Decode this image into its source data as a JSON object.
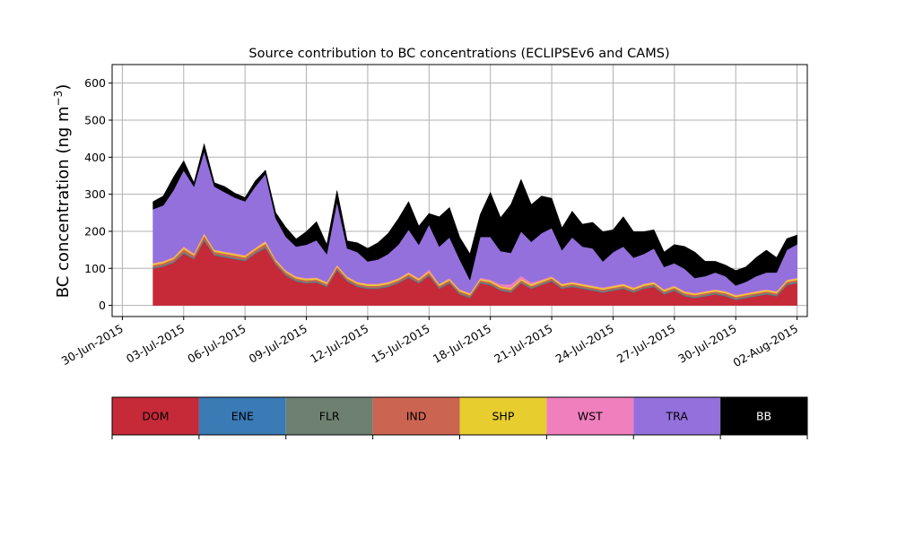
{
  "chart_data": {
    "type": "area",
    "stacked": true,
    "title": "Source contribution to BC concentrations (ECLIPSEv6 and CAMS)",
    "xlabel": "",
    "ylabel": "BC concentration (ng m",
    "ylabel_sup": "−3",
    "ylabel_close": ")",
    "x_axis_type": "date",
    "xlim": [
      "2015-06-29T12:00",
      "2015-08-02T12:00"
    ],
    "ylim": [
      -30,
      650
    ],
    "grid": true,
    "y_ticks": [
      0,
      100,
      200,
      300,
      400,
      500,
      600
    ],
    "x_ticks": [
      {
        "date": "2015-06-30",
        "label": "30-Jun-2015"
      },
      {
        "date": "2015-07-03",
        "label": "03-Jul-2015"
      },
      {
        "date": "2015-07-06",
        "label": "06-Jul-2015"
      },
      {
        "date": "2015-07-09",
        "label": "09-Jul-2015"
      },
      {
        "date": "2015-07-12",
        "label": "12-Jul-2015"
      },
      {
        "date": "2015-07-15",
        "label": "15-Jul-2015"
      },
      {
        "date": "2015-07-18",
        "label": "18-Jul-2015"
      },
      {
        "date": "2015-07-21",
        "label": "21-Jul-2015"
      },
      {
        "date": "2015-07-24",
        "label": "24-Jul-2015"
      },
      {
        "date": "2015-07-27",
        "label": "27-Jul-2015"
      },
      {
        "date": "2015-07-30",
        "label": "30-Jul-2015"
      },
      {
        "date": "2015-08-02",
        "label": "02-Aug-2015"
      }
    ],
    "x": [
      "2015-07-01T12:00",
      "2015-07-02T00:00",
      "2015-07-02T12:00",
      "2015-07-03T00:00",
      "2015-07-03T12:00",
      "2015-07-04T00:00",
      "2015-07-04T12:00",
      "2015-07-05T00:00",
      "2015-07-05T12:00",
      "2015-07-06T00:00",
      "2015-07-06T12:00",
      "2015-07-07T00:00",
      "2015-07-07T12:00",
      "2015-07-08T00:00",
      "2015-07-08T12:00",
      "2015-07-09T00:00",
      "2015-07-09T12:00",
      "2015-07-10T00:00",
      "2015-07-10T12:00",
      "2015-07-11T00:00",
      "2015-07-11T12:00",
      "2015-07-12T00:00",
      "2015-07-12T12:00",
      "2015-07-13T00:00",
      "2015-07-13T12:00",
      "2015-07-14T00:00",
      "2015-07-14T12:00",
      "2015-07-15T00:00",
      "2015-07-15T12:00",
      "2015-07-16T00:00",
      "2015-07-16T12:00",
      "2015-07-17T00:00",
      "2015-07-17T12:00",
      "2015-07-18T00:00",
      "2015-07-18T12:00",
      "2015-07-19T00:00",
      "2015-07-19T12:00",
      "2015-07-20T00:00",
      "2015-07-20T12:00",
      "2015-07-21T00:00",
      "2015-07-21T12:00",
      "2015-07-22T00:00",
      "2015-07-22T12:00",
      "2015-07-23T00:00",
      "2015-07-23T12:00",
      "2015-07-24T00:00",
      "2015-07-24T12:00",
      "2015-07-25T00:00",
      "2015-07-25T12:00",
      "2015-07-26T00:00",
      "2015-07-26T12:00",
      "2015-07-27T00:00",
      "2015-07-27T12:00",
      "2015-07-28T00:00",
      "2015-07-28T12:00",
      "2015-07-29T00:00",
      "2015-07-29T12:00",
      "2015-07-30T00:00",
      "2015-07-30T12:00",
      "2015-07-31T00:00",
      "2015-07-31T12:00",
      "2015-08-01T00:00",
      "2015-08-01T12:00",
      "2015-08-02T00:00"
    ],
    "series": [
      {
        "name": "DOM",
        "color": "#c62a38",
        "values": [
          100,
          105,
          115,
          140,
          125,
          175,
          135,
          130,
          125,
          120,
          140,
          155,
          110,
          80,
          65,
          60,
          62,
          50,
          95,
          65,
          50,
          45,
          45,
          50,
          60,
          75,
          60,
          80,
          45,
          60,
          30,
          20,
          60,
          55,
          40,
          35,
          60,
          45,
          55,
          65,
          45,
          50,
          45,
          40,
          35,
          40,
          45,
          35,
          45,
          50,
          30,
          40,
          25,
          20,
          25,
          30,
          25,
          15,
          20,
          25,
          30,
          25,
          55,
          60
        ]
      },
      {
        "name": "ENE",
        "color": "#3a7ab5",
        "values": [
          1,
          1,
          1,
          1,
          1,
          1,
          1,
          1,
          1,
          1,
          1,
          1,
          1,
          1,
          1,
          1,
          1,
          1,
          1,
          1,
          1,
          1,
          1,
          1,
          1,
          1,
          1,
          1,
          1,
          1,
          1,
          1,
          1,
          1,
          1,
          1,
          1,
          1,
          1,
          1,
          1,
          1,
          1,
          1,
          1,
          1,
          1,
          1,
          1,
          1,
          1,
          1,
          1,
          1,
          1,
          1,
          1,
          1,
          1,
          1,
          1,
          1,
          1,
          1
        ]
      },
      {
        "name": "FLR",
        "color": "#6e8170",
        "values": [
          3,
          3,
          3,
          4,
          3,
          4,
          3,
          3,
          3,
          3,
          3,
          4,
          3,
          3,
          3,
          3,
          3,
          3,
          3,
          3,
          3,
          3,
          3,
          3,
          3,
          3,
          3,
          3,
          3,
          3,
          3,
          3,
          3,
          3,
          3,
          3,
          3,
          3,
          3,
          3,
          3,
          3,
          3,
          3,
          3,
          3,
          3,
          3,
          3,
          3,
          3,
          3,
          3,
          3,
          3,
          3,
          3,
          3,
          3,
          3,
          3,
          3,
          3,
          3
        ]
      },
      {
        "name": "IND",
        "color": "#cc6452",
        "values": [
          5,
          5,
          6,
          7,
          6,
          8,
          6,
          6,
          6,
          6,
          6,
          7,
          5,
          5,
          4,
          4,
          4,
          4,
          5,
          4,
          4,
          4,
          4,
          4,
          4,
          5,
          4,
          5,
          4,
          4,
          4,
          4,
          4,
          4,
          4,
          4,
          4,
          4,
          4,
          4,
          4,
          4,
          4,
          4,
          4,
          4,
          4,
          4,
          4,
          4,
          4,
          4,
          4,
          4,
          4,
          4,
          4,
          4,
          4,
          4,
          4,
          4,
          5,
          5
        ]
      },
      {
        "name": "SHP",
        "color": "#e8cd2e",
        "values": [
          4,
          4,
          4,
          5,
          4,
          5,
          4,
          4,
          4,
          4,
          4,
          5,
          4,
          4,
          4,
          4,
          4,
          4,
          4,
          4,
          4,
          4,
          4,
          4,
          4,
          4,
          4,
          4,
          4,
          4,
          4,
          4,
          4,
          4,
          4,
          4,
          4,
          4,
          4,
          4,
          4,
          4,
          4,
          4,
          4,
          4,
          4,
          4,
          4,
          4,
          4,
          4,
          4,
          4,
          4,
          4,
          4,
          4,
          4,
          4,
          4,
          4,
          4,
          4
        ]
      },
      {
        "name": "WST",
        "color": "#f07fbe",
        "values": [
          2,
          2,
          2,
          3,
          2,
          3,
          2,
          2,
          2,
          2,
          2,
          3,
          2,
          2,
          2,
          2,
          2,
          2,
          2,
          2,
          2,
          2,
          2,
          2,
          2,
          2,
          2,
          5,
          2,
          2,
          2,
          2,
          3,
          3,
          5,
          10,
          8,
          5,
          3,
          2,
          2,
          2,
          2,
          2,
          2,
          2,
          2,
          2,
          2,
          2,
          2,
          2,
          2,
          2,
          2,
          2,
          2,
          2,
          2,
          2,
          2,
          2,
          2,
          2
        ]
      },
      {
        "name": "TRA",
        "color": "#9370db",
        "values": [
          145,
          150,
          180,
          205,
          180,
          220,
          170,
          160,
          150,
          145,
          165,
          180,
          110,
          90,
          80,
          90,
          100,
          75,
          170,
          75,
          80,
          60,
          65,
          75,
          90,
          115,
          90,
          120,
          100,
          110,
          80,
          35,
          110,
          115,
          90,
          85,
          120,
          110,
          125,
          130,
          90,
          120,
          100,
          100,
          70,
          90,
          100,
          80,
          80,
          90,
          60,
          60,
          60,
          40,
          40,
          45,
          40,
          25,
          30,
          40,
          45,
          50,
          80,
          90
        ]
      },
      {
        "name": "BB",
        "color": "#000000",
        "values": [
          20,
          25,
          35,
          25,
          10,
          20,
          10,
          15,
          12,
          10,
          15,
          10,
          15,
          25,
          20,
          35,
          50,
          25,
          30,
          20,
          25,
          35,
          45,
          55,
          70,
          75,
          50,
          30,
          80,
          80,
          60,
          70,
          60,
          120,
          90,
          130,
          140,
          100,
          100,
          80,
          60,
          70,
          60,
          70,
          80,
          60,
          80,
          70,
          60,
          50,
          40,
          50,
          60,
          70,
          40,
          30,
          30,
          40,
          40,
          50,
          60,
          40,
          30,
          25
        ]
      }
    ],
    "legend": {
      "placement": "bottom",
      "entries": [
        {
          "name": "DOM",
          "color": "#c62a38"
        },
        {
          "name": "ENE",
          "color": "#3a7ab5"
        },
        {
          "name": "FLR",
          "color": "#6e8170"
        },
        {
          "name": "IND",
          "color": "#cc6452"
        },
        {
          "name": "SHP",
          "color": "#e8cd2e"
        },
        {
          "name": "WST",
          "color": "#f07fbe"
        },
        {
          "name": "TRA",
          "color": "#9370db"
        },
        {
          "name": "BB",
          "color": "#000000"
        }
      ]
    }
  }
}
